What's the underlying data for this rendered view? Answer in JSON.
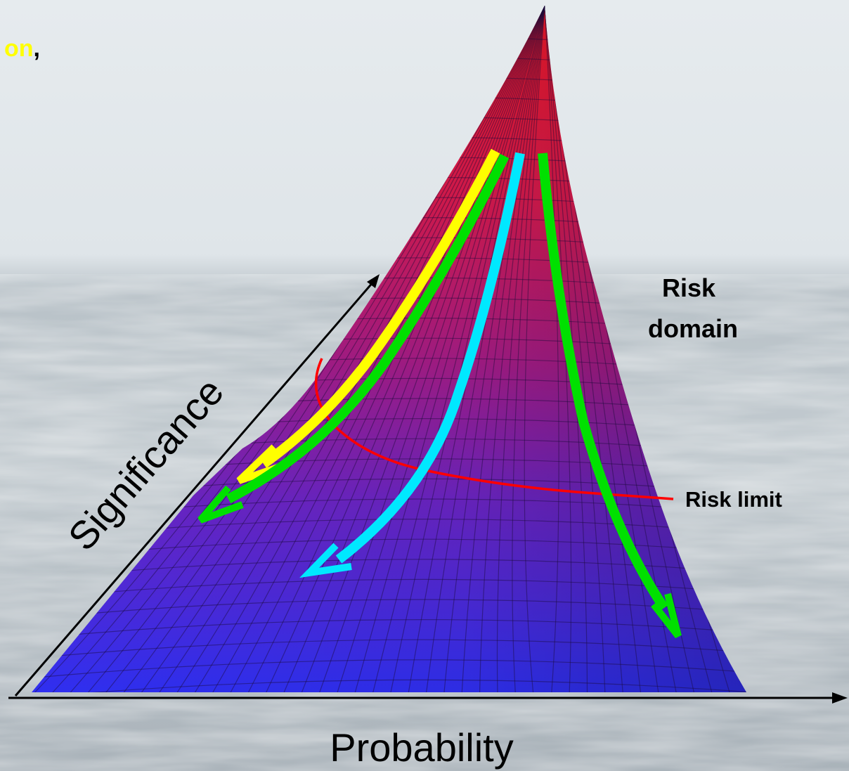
{
  "corner_text": {
    "highlight": "on",
    "punctuation": ","
  },
  "axes": {
    "x_label": "Probability",
    "y_label": "Significance"
  },
  "annotations": {
    "risk_domain_line1": "Risk",
    "risk_domain_line2": "domain",
    "risk_limit": "Risk limit"
  },
  "colors": {
    "surface_top": "#e8202e",
    "surface_mid": "#8a1a9a",
    "surface_bottom": "#3a2ae6",
    "mesh": "#1a0a3a",
    "arrow_yellow": "#ffff00",
    "arrow_green": "#00e000",
    "arrow_cyan": "#00e8ff",
    "risk_limit_line": "#ff0000",
    "axis": "#000000",
    "highlight_text": "#ffff00"
  }
}
